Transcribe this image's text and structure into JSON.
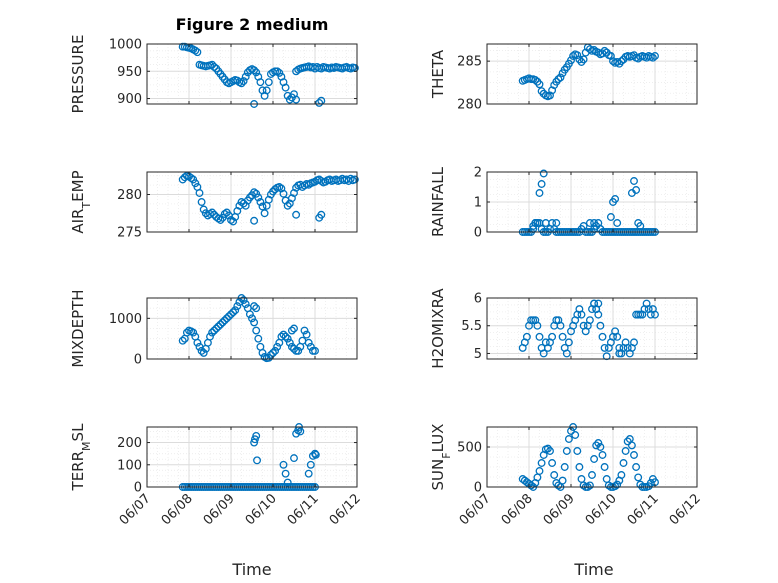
{
  "figure_title": "Figure 2 medium",
  "chart_data": [
    {
      "type": "scatter",
      "ylabel": "PRESSURE",
      "title": "Figure 2 medium",
      "ylim": [
        890,
        1000
      ],
      "yticks": [
        900,
        950,
        1000
      ],
      "xlim": [
        0,
        5
      ],
      "xticklabels": [
        "06/07",
        "06/08",
        "06/09",
        "06/10",
        "06/11",
        "06/12"
      ],
      "grid": "on",
      "x": [
        0.85,
        0.9,
        0.95,
        1.0,
        1.05,
        1.1,
        1.15,
        1.2,
        1.25,
        1.3,
        1.35,
        1.4,
        1.45,
        1.5,
        1.55,
        1.6,
        1.65,
        1.7,
        1.75,
        1.8,
        1.85,
        1.9,
        1.95,
        2.0,
        2.05,
        2.1,
        2.15,
        2.2,
        2.25,
        2.3,
        2.35,
        2.4,
        2.45,
        2.5,
        2.55,
        2.6,
        2.65,
        2.7,
        2.75,
        2.8,
        2.85,
        2.9,
        2.95,
        3.0,
        3.05,
        3.1,
        3.15,
        3.2,
        3.25,
        3.3,
        3.35,
        3.4,
        3.45,
        3.5,
        3.55,
        3.6,
        3.65,
        3.7,
        3.75,
        3.8,
        3.85,
        3.9,
        3.95,
        4.0,
        4.05,
        4.1,
        4.15,
        4.2,
        4.25,
        4.3,
        4.35,
        4.4,
        4.45,
        4.5,
        4.55,
        4.6,
        4.65,
        4.7,
        4.75,
        4.8,
        4.85,
        4.9,
        4.95,
        2.55,
        3.55,
        4.1,
        4.15
      ],
      "y": [
        995,
        995,
        994,
        993,
        992,
        990,
        988,
        985,
        962,
        961,
        960,
        959,
        960,
        961,
        962,
        958,
        955,
        950,
        945,
        940,
        935,
        930,
        928,
        930,
        932,
        934,
        933,
        930,
        928,
        932,
        940,
        948,
        952,
        954,
        952,
        948,
        940,
        930,
        915,
        905,
        915,
        930,
        945,
        948,
        950,
        950,
        947,
        940,
        930,
        920,
        905,
        898,
        902,
        908,
        950,
        953,
        955,
        956,
        957,
        958,
        959,
        957,
        958,
        955,
        958,
        956,
        955,
        958,
        957,
        956,
        955,
        957,
        956,
        958,
        957,
        956,
        955,
        957,
        958,
        956,
        955,
        957,
        956,
        890,
        898,
        892,
        896
      ]
    },
    {
      "type": "scatter",
      "ylabel": "THETA",
      "ylim": [
        280,
        287
      ],
      "yticks": [
        280,
        285
      ],
      "xlim": [
        0,
        5
      ],
      "xticklabels": [
        "06/07",
        "06/08",
        "06/09",
        "06/10",
        "06/11",
        "06/12"
      ],
      "grid": "on",
      "x": [
        0.85,
        0.9,
        0.95,
        1.0,
        1.05,
        1.1,
        1.15,
        1.2,
        1.25,
        1.3,
        1.35,
        1.4,
        1.45,
        1.5,
        1.55,
        1.6,
        1.65,
        1.7,
        1.75,
        1.8,
        1.85,
        1.9,
        1.95,
        2.0,
        2.05,
        2.1,
        2.15,
        2.2,
        2.25,
        2.3,
        2.35,
        2.4,
        2.45,
        2.5,
        2.55,
        2.6,
        2.65,
        2.7,
        2.75,
        2.8,
        2.85,
        2.9,
        2.95,
        3.0,
        3.05,
        3.1,
        3.15,
        3.2,
        3.25,
        3.3,
        3.35,
        3.4,
        3.45,
        3.5,
        3.55,
        3.6,
        3.65,
        3.7,
        3.75,
        3.8,
        3.85,
        3.9,
        3.95,
        4.0
      ],
      "y": [
        282.7,
        282.8,
        282.9,
        283.0,
        282.9,
        282.9,
        282.8,
        282.6,
        282.3,
        281.5,
        281.2,
        281.0,
        280.9,
        281.0,
        281.6,
        282.2,
        282.6,
        282.9,
        283.1,
        283.6,
        284.0,
        284.3,
        284.7,
        285.1,
        285.6,
        285.8,
        285.7,
        285.2,
        284.9,
        285.2,
        286.0,
        286.6,
        286.4,
        286.2,
        286.3,
        286.1,
        286.0,
        285.8,
        285.9,
        286.2,
        286.0,
        285.7,
        285.6,
        285.0,
        284.8,
        284.9,
        284.7,
        285.0,
        285.2,
        285.5,
        285.6,
        285.5,
        285.6,
        285.7,
        285.4,
        285.3,
        285.5,
        285.6,
        285.5,
        285.4,
        285.6,
        285.5,
        285.4,
        285.6
      ]
    },
    {
      "type": "scatter",
      "ylabel": "AIR_TEMP",
      "ylim": [
        275,
        283
      ],
      "yticks": [
        275,
        280
      ],
      "xlim": [
        0,
        5
      ],
      "xticklabels": [
        "06/07",
        "06/08",
        "06/09",
        "06/10",
        "06/11",
        "06/12"
      ],
      "grid": "on",
      "x": [
        0.85,
        0.9,
        0.95,
        1.0,
        1.05,
        1.1,
        1.15,
        1.2,
        1.25,
        1.3,
        1.35,
        1.4,
        1.45,
        1.5,
        1.55,
        1.6,
        1.65,
        1.7,
        1.75,
        1.8,
        1.85,
        1.9,
        1.95,
        2.0,
        2.05,
        2.1,
        2.15,
        2.2,
        2.25,
        2.3,
        2.35,
        2.4,
        2.45,
        2.5,
        2.55,
        2.6,
        2.65,
        2.7,
        2.75,
        2.8,
        2.85,
        2.9,
        2.95,
        3.0,
        3.05,
        3.1,
        3.15,
        3.2,
        3.25,
        3.3,
        3.35,
        3.4,
        3.45,
        3.5,
        3.55,
        3.6,
        3.65,
        3.7,
        3.75,
        3.8,
        3.85,
        3.9,
        3.95,
        4.0,
        4.05,
        4.1,
        4.15,
        4.2,
        4.25,
        4.3,
        4.35,
        4.4,
        4.45,
        4.5,
        4.55,
        4.6,
        4.65,
        4.7,
        4.75,
        4.8,
        4.85,
        4.9,
        4.95,
        2.55,
        3.55,
        4.1,
        4.15
      ],
      "y": [
        282.0,
        282.3,
        282.5,
        282.4,
        282.2,
        282.0,
        281.5,
        281.0,
        280.2,
        279.0,
        278.0,
        277.5,
        277.2,
        277.4,
        277.6,
        277.3,
        277.0,
        276.8,
        276.6,
        276.9,
        277.4,
        277.6,
        277.2,
        276.6,
        276.4,
        277.0,
        277.8,
        278.5,
        279.0,
        278.8,
        278.5,
        279.2,
        279.6,
        279.9,
        280.3,
        280.1,
        279.6,
        279.0,
        278.4,
        277.5,
        278.5,
        279.3,
        280.0,
        280.4,
        280.7,
        280.9,
        281.0,
        280.8,
        280.1,
        279.2,
        278.5,
        278.8,
        279.5,
        280.2,
        280.9,
        281.2,
        281.3,
        281.0,
        281.2,
        281.4,
        281.3,
        281.5,
        281.6,
        281.7,
        281.9,
        282.0,
        281.8,
        281.6,
        281.7,
        281.9,
        282.0,
        281.8,
        281.9,
        282.0,
        281.8,
        281.9,
        282.1,
        281.9,
        282.0,
        281.8,
        282.1,
        281.9,
        282.0,
        276.5,
        277.3,
        276.9,
        277.3
      ]
    },
    {
      "type": "scatter",
      "ylabel": "RAINFALL",
      "ylim": [
        0,
        2
      ],
      "yticks": [
        0,
        1,
        2
      ],
      "xlim": [
        0,
        5
      ],
      "xticklabels": [
        "06/07",
        "06/08",
        "06/09",
        "06/10",
        "06/11",
        "06/12"
      ],
      "grid": "on",
      "x": [
        0.85,
        0.9,
        0.95,
        1.0,
        1.05,
        1.1,
        1.15,
        1.2,
        1.25,
        1.3,
        1.35,
        1.4,
        1.45,
        1.5,
        1.55,
        1.6,
        1.65,
        1.7,
        1.75,
        1.8,
        1.85,
        1.9,
        1.95,
        2.0,
        2.05,
        2.1,
        2.15,
        2.2,
        2.25,
        2.3,
        2.35,
        2.4,
        2.45,
        2.5,
        2.55,
        2.6,
        2.65,
        2.7,
        2.75,
        2.8,
        2.85,
        2.9,
        2.95,
        3.0,
        3.05,
        3.1,
        3.15,
        3.2,
        3.25,
        3.3,
        3.35,
        3.4,
        3.45,
        3.5,
        3.55,
        3.6,
        3.65,
        3.7,
        3.75,
        3.8,
        3.85,
        3.9,
        3.95,
        4.0,
        1.2,
        1.25,
        1.3,
        1.35,
        2.45,
        2.95,
        3.0,
        3.05,
        3.1,
        3.45,
        3.5,
        3.55,
        1.1,
        1.15,
        1.4,
        1.65,
        2.55,
        2.7,
        3.6,
        3.65
      ],
      "y": [
        0,
        0,
        0,
        0,
        0,
        0.1,
        0.3,
        0.3,
        0.3,
        0.1,
        0,
        0,
        0,
        0.1,
        0.3,
        0.1,
        0,
        0,
        0,
        0,
        0,
        0,
        0,
        0,
        0,
        0,
        0,
        0,
        0.1,
        0.2,
        0,
        0,
        0,
        0,
        0.1,
        0.2,
        0.3,
        0.1,
        0,
        0,
        0,
        0,
        0,
        0,
        0,
        0,
        0,
        0,
        0,
        0,
        0,
        0,
        0,
        0,
        0,
        0,
        0,
        0,
        0,
        0,
        0,
        0,
        0,
        0,
        0.3,
        1.3,
        1.6,
        1.95,
        0.3,
        0.5,
        1.0,
        1.1,
        0.3,
        1.3,
        1.7,
        1.4,
        0.2,
        0.3,
        0.3,
        0.3,
        0.3,
        0.1,
        0.3,
        0.2
      ]
    },
    {
      "type": "scatter",
      "ylabel": "MIXDEPTH",
      "ylim": [
        0,
        1500
      ],
      "yticks": [
        0,
        1000
      ],
      "xlim": [
        0,
        5
      ],
      "xticklabels": [
        "06/07",
        "06/08",
        "06/09",
        "06/10",
        "06/11",
        "06/12"
      ],
      "grid": "on",
      "x": [
        0.85,
        0.9,
        0.95,
        1.0,
        1.05,
        1.1,
        1.15,
        1.2,
        1.25,
        1.3,
        1.35,
        1.4,
        1.45,
        1.5,
        1.55,
        1.6,
        1.65,
        1.7,
        1.75,
        1.8,
        1.85,
        1.9,
        1.95,
        2.0,
        2.05,
        2.1,
        2.15,
        2.2,
        2.25,
        2.3,
        2.35,
        2.4,
        2.45,
        2.5,
        2.55,
        2.6,
        2.65,
        2.7,
        2.75,
        2.8,
        2.85,
        2.9,
        2.95,
        3.0,
        3.05,
        3.1,
        3.15,
        3.2,
        3.25,
        3.3,
        3.35,
        3.4,
        3.45,
        3.5,
        3.55,
        3.6,
        3.65,
        3.7,
        3.75,
        3.8,
        3.85,
        3.9,
        3.95,
        4.0,
        2.55,
        2.6,
        3.45,
        3.5
      ],
      "y": [
        450,
        500,
        650,
        700,
        680,
        650,
        550,
        400,
        300,
        200,
        150,
        250,
        400,
        550,
        650,
        700,
        750,
        800,
        850,
        900,
        950,
        1000,
        1050,
        1100,
        1150,
        1200,
        1300,
        1400,
        1500,
        1450,
        1350,
        1250,
        1100,
        1000,
        900,
        700,
        500,
        300,
        150,
        50,
        20,
        30,
        100,
        150,
        200,
        300,
        400,
        550,
        600,
        550,
        500,
        400,
        300,
        250,
        200,
        200,
        300,
        450,
        700,
        600,
        400,
        300,
        200,
        200,
        1300,
        1250,
        700,
        750
      ]
    },
    {
      "type": "scatter",
      "ylabel": "H2OMIXRA",
      "ylim": [
        4.9,
        6.0
      ],
      "yticks": [
        5,
        5.5,
        6
      ],
      "xlim": [
        0,
        5
      ],
      "xticklabels": [
        "06/07",
        "06/08",
        "06/09",
        "06/10",
        "06/11",
        "06/12"
      ],
      "grid": "on",
      "x": [
        0.85,
        0.9,
        0.95,
        1.0,
        1.05,
        1.1,
        1.15,
        1.2,
        1.25,
        1.3,
        1.35,
        1.4,
        1.45,
        1.5,
        1.55,
        1.6,
        1.65,
        1.7,
        1.75,
        1.8,
        1.85,
        1.9,
        1.95,
        2.0,
        2.05,
        2.1,
        2.15,
        2.2,
        2.25,
        2.3,
        2.35,
        2.4,
        2.45,
        2.5,
        2.55,
        2.6,
        2.65,
        2.7,
        2.75,
        2.8,
        2.85,
        2.9,
        2.95,
        3.0,
        3.05,
        3.1,
        3.15,
        3.2,
        3.25,
        3.3,
        3.35,
        3.4,
        3.45,
        3.5,
        3.55,
        3.6,
        3.65,
        3.7,
        3.75,
        3.8,
        3.85,
        3.9,
        3.95,
        4.0,
        2.55,
        2.6,
        2.65,
        3.15
      ],
      "y": [
        5.1,
        5.2,
        5.3,
        5.5,
        5.6,
        5.6,
        5.6,
        5.5,
        5.3,
        5.1,
        5.0,
        5.2,
        5.1,
        5.2,
        5.3,
        5.5,
        5.6,
        5.6,
        5.5,
        5.3,
        5.1,
        5.0,
        5.2,
        5.4,
        5.5,
        5.6,
        5.7,
        5.8,
        5.7,
        5.5,
        5.4,
        5.5,
        5.6,
        5.8,
        5.9,
        5.8,
        5.7,
        5.5,
        5.3,
        5.1,
        4.95,
        5.1,
        5.2,
        5.3,
        5.4,
        5.3,
        5.1,
        5.0,
        5.1,
        5.2,
        5.1,
        5.0,
        5.1,
        5.2,
        5.7,
        5.7,
        5.7,
        5.7,
        5.8,
        5.9,
        5.8,
        5.7,
        5.8,
        5.7,
        5.9,
        5.8,
        5.9,
        5.0
      ]
    },
    {
      "type": "scatter",
      "ylabel": "TERR_MSL",
      "ylim": [
        0,
        270
      ],
      "yticks": [
        0,
        100,
        200
      ],
      "xlim": [
        0,
        5
      ],
      "xticklabels": [
        "06/07",
        "06/08",
        "06/09",
        "06/10",
        "06/11",
        "06/12"
      ],
      "grid": "on",
      "x": [
        0.85,
        0.9,
        0.95,
        1.0,
        1.05,
        1.1,
        1.15,
        1.2,
        1.25,
        1.3,
        1.35,
        1.4,
        1.45,
        1.5,
        1.55,
        1.6,
        1.65,
        1.7,
        1.75,
        1.8,
        1.85,
        1.9,
        1.95,
        2.0,
        2.05,
        2.1,
        2.15,
        2.2,
        2.25,
        2.3,
        2.35,
        2.4,
        2.45,
        2.5,
        2.55,
        2.6,
        2.65,
        2.7,
        2.75,
        2.8,
        2.85,
        2.9,
        2.95,
        3.0,
        3.05,
        3.1,
        3.15,
        3.2,
        3.25,
        3.3,
        3.35,
        3.4,
        3.45,
        3.5,
        3.55,
        3.6,
        3.65,
        3.7,
        3.75,
        3.8,
        3.85,
        3.9,
        3.95,
        4.0,
        2.55,
        2.57,
        2.6,
        2.62,
        3.25,
        3.3,
        3.35,
        3.5,
        3.55,
        3.6,
        3.62,
        3.65,
        3.85,
        3.9,
        3.95,
        4.0,
        4.02
      ],
      "y": [
        0,
        0,
        0,
        0,
        0,
        0,
        0,
        0,
        0,
        0,
        0,
        0,
        0,
        0,
        0,
        0,
        0,
        0,
        0,
        0,
        0,
        0,
        0,
        0,
        0,
        0,
        0,
        0,
        0,
        0,
        0,
        0,
        0,
        0,
        0,
        0,
        0,
        0,
        0,
        0,
        0,
        0,
        0,
        0,
        0,
        0,
        0,
        0,
        0,
        0,
        0,
        0,
        0,
        0,
        0,
        0,
        0,
        0,
        0,
        0,
        0,
        0,
        0,
        0,
        200,
        215,
        230,
        120,
        100,
        60,
        20,
        130,
        240,
        255,
        270,
        250,
        60,
        100,
        140,
        150,
        145
      ]
    },
    {
      "type": "scatter",
      "ylabel": "SUN_FLUX",
      "ylim": [
        0,
        750
      ],
      "yticks": [
        0,
        500
      ],
      "xlim": [
        0,
        5
      ],
      "xticklabels": [
        "06/07",
        "06/08",
        "06/09",
        "06/10",
        "06/11",
        "06/12"
      ],
      "grid": "on",
      "x": [
        0.85,
        0.9,
        0.95,
        1.0,
        1.05,
        1.1,
        1.15,
        1.2,
        1.25,
        1.3,
        1.35,
        1.4,
        1.45,
        1.5,
        1.55,
        1.6,
        1.65,
        1.7,
        1.75,
        1.8,
        1.85,
        1.9,
        1.95,
        2.0,
        2.05,
        2.1,
        2.15,
        2.2,
        2.25,
        2.3,
        2.35,
        2.4,
        2.45,
        2.5,
        2.55,
        2.6,
        2.65,
        2.7,
        2.75,
        2.8,
        2.85,
        2.9,
        2.95,
        3.0,
        3.05,
        3.1,
        3.15,
        3.2,
        3.25,
        3.3,
        3.35,
        3.4,
        3.45,
        3.5,
        3.55,
        3.6,
        3.65,
        3.7,
        3.75,
        3.8,
        3.85,
        3.9,
        3.95,
        4.0
      ],
      "y": [
        100,
        80,
        60,
        40,
        20,
        0,
        50,
        120,
        200,
        300,
        400,
        470,
        480,
        450,
        300,
        150,
        50,
        20,
        0,
        80,
        250,
        450,
        600,
        700,
        750,
        650,
        450,
        250,
        100,
        20,
        0,
        0,
        20,
        150,
        350,
        520,
        550,
        500,
        400,
        250,
        100,
        20,
        0,
        0,
        10,
        30,
        80,
        150,
        300,
        450,
        570,
        600,
        520,
        400,
        250,
        120,
        30,
        0,
        0,
        0,
        10,
        50,
        100,
        60
      ]
    }
  ],
  "xlabel": "Time"
}
